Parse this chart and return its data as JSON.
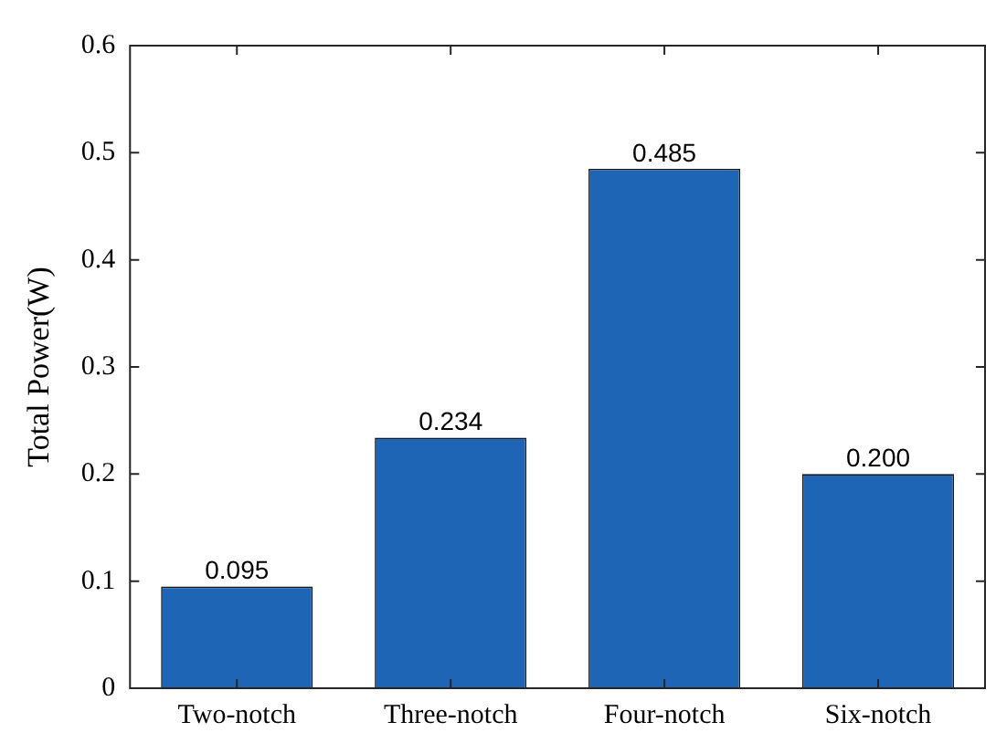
{
  "chart_data": {
    "type": "bar",
    "ylabel": "Total Power(W)",
    "categories": [
      "Two-notch",
      "Three-notch",
      "Four-notch",
      "Six-notch"
    ],
    "values": [
      0.095,
      0.234,
      0.485,
      0.2
    ],
    "value_labels": [
      "0.095",
      "0.234",
      "0.485",
      "0.200"
    ],
    "color": "#1f65b5",
    "ylim": [
      0,
      0.6
    ],
    "yticks": [
      0,
      0.1,
      0.2,
      0.3,
      0.4,
      0.5,
      0.6
    ],
    "grid": false,
    "legend": false
  }
}
